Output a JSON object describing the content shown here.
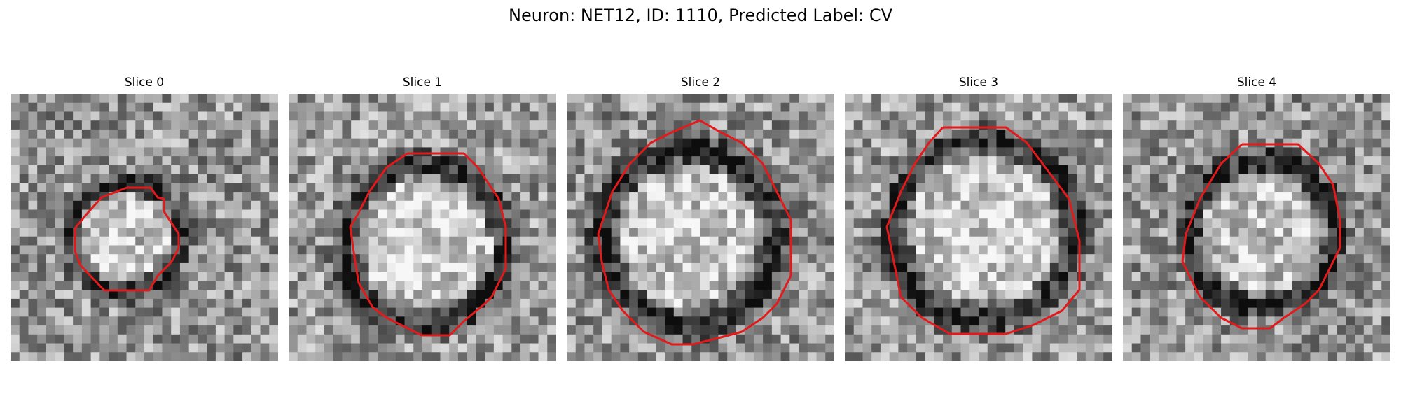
{
  "figure": {
    "title": "Neuron: NET12, ID: 1110, Predicted Label: CV"
  },
  "panels": [
    {
      "title": "Slice 0"
    },
    {
      "title": "Slice 1"
    },
    {
      "title": "Slice 2"
    },
    {
      "title": "Slice 3"
    },
    {
      "title": "Slice 4"
    }
  ],
  "colors": {
    "contour": "#e31a1c",
    "background": "#ffffff",
    "image_dark": "#111111",
    "image_light": "#f0f0f0"
  },
  "image": {
    "type": "grayscale-microscopy-patch",
    "grid": "30x30"
  }
}
